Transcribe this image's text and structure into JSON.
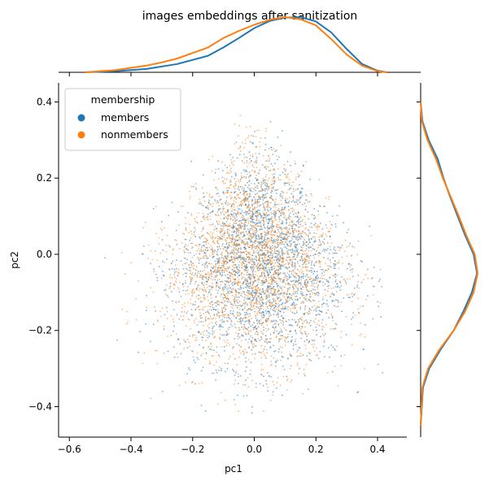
{
  "chart_data": {
    "type": "scatter",
    "title": "images embeddings after sanitization",
    "xlabel": "pc1",
    "ylabel": "pc2",
    "xlim": [
      -0.635,
      0.495
    ],
    "ylim": [
      -0.48,
      0.45
    ],
    "xticks": [
      -0.6,
      -0.4,
      -0.2,
      0.0,
      0.2,
      0.4
    ],
    "yticks": [
      -0.4,
      -0.2,
      0.0,
      0.2,
      0.4
    ],
    "xtick_labels": [
      "−0.6",
      "−0.4",
      "−0.2",
      "0.0",
      "0.2",
      "0.4"
    ],
    "ytick_labels": [
      "−0.4",
      "−0.2",
      "0.0",
      "0.2",
      "0.4"
    ],
    "grid": false,
    "legend": {
      "title": "membership",
      "placement": "top-left",
      "entries": [
        "members",
        "nonmembers"
      ]
    },
    "series": [
      {
        "name": "members",
        "color": "#1f77b4",
        "scatter_center": [
          0.02,
          -0.03
        ],
        "scatter_spread": [
          0.14,
          0.13
        ],
        "x_density": [
          [
            -0.55,
            0.0
          ],
          [
            -0.45,
            0.02
          ],
          [
            -0.35,
            0.06
          ],
          [
            -0.25,
            0.15
          ],
          [
            -0.15,
            0.3
          ],
          [
            -0.1,
            0.45
          ],
          [
            -0.05,
            0.62
          ],
          [
            0.0,
            0.8
          ],
          [
            0.05,
            0.93
          ],
          [
            0.1,
            0.99
          ],
          [
            0.15,
            1.0
          ],
          [
            0.2,
            0.92
          ],
          [
            0.25,
            0.72
          ],
          [
            0.3,
            0.42
          ],
          [
            0.35,
            0.15
          ],
          [
            0.4,
            0.03
          ],
          [
            0.43,
            0.0
          ]
        ],
        "y_density": [
          [
            -0.45,
            0.0
          ],
          [
            -0.35,
            0.04
          ],
          [
            -0.3,
            0.15
          ],
          [
            -0.25,
            0.35
          ],
          [
            -0.2,
            0.58
          ],
          [
            -0.15,
            0.75
          ],
          [
            -0.1,
            0.9
          ],
          [
            -0.05,
            0.99
          ],
          [
            0.0,
            0.93
          ],
          [
            0.05,
            0.78
          ],
          [
            0.1,
            0.65
          ],
          [
            0.15,
            0.52
          ],
          [
            0.2,
            0.4
          ],
          [
            0.25,
            0.3
          ],
          [
            0.3,
            0.14
          ],
          [
            0.35,
            0.03
          ],
          [
            0.4,
            0.0
          ]
        ]
      },
      {
        "name": "nonmembers",
        "color": "#ff7f0e",
        "scatter_center": [
          0.0,
          -0.03
        ],
        "scatter_spread": [
          0.15,
          0.13
        ],
        "x_density": [
          [
            -0.55,
            0.0
          ],
          [
            -0.45,
            0.04
          ],
          [
            -0.35,
            0.12
          ],
          [
            -0.3,
            0.18
          ],
          [
            -0.25,
            0.25
          ],
          [
            -0.15,
            0.45
          ],
          [
            -0.1,
            0.62
          ],
          [
            -0.05,
            0.75
          ],
          [
            0.0,
            0.86
          ],
          [
            0.05,
            0.95
          ],
          [
            0.1,
            1.0
          ],
          [
            0.15,
            0.96
          ],
          [
            0.2,
            0.85
          ],
          [
            0.25,
            0.6
          ],
          [
            0.3,
            0.32
          ],
          [
            0.35,
            0.12
          ],
          [
            0.4,
            0.02
          ],
          [
            0.43,
            0.0
          ]
        ],
        "y_density": [
          [
            -0.45,
            0.0
          ],
          [
            -0.35,
            0.03
          ],
          [
            -0.3,
            0.13
          ],
          [
            -0.25,
            0.33
          ],
          [
            -0.2,
            0.58
          ],
          [
            -0.15,
            0.78
          ],
          [
            -0.1,
            0.93
          ],
          [
            -0.05,
            1.0
          ],
          [
            0.0,
            0.95
          ],
          [
            0.05,
            0.8
          ],
          [
            0.1,
            0.67
          ],
          [
            0.15,
            0.53
          ],
          [
            0.2,
            0.39
          ],
          [
            0.25,
            0.27
          ],
          [
            0.3,
            0.12
          ],
          [
            0.35,
            0.02
          ],
          [
            0.4,
            0.0
          ]
        ]
      }
    ]
  }
}
